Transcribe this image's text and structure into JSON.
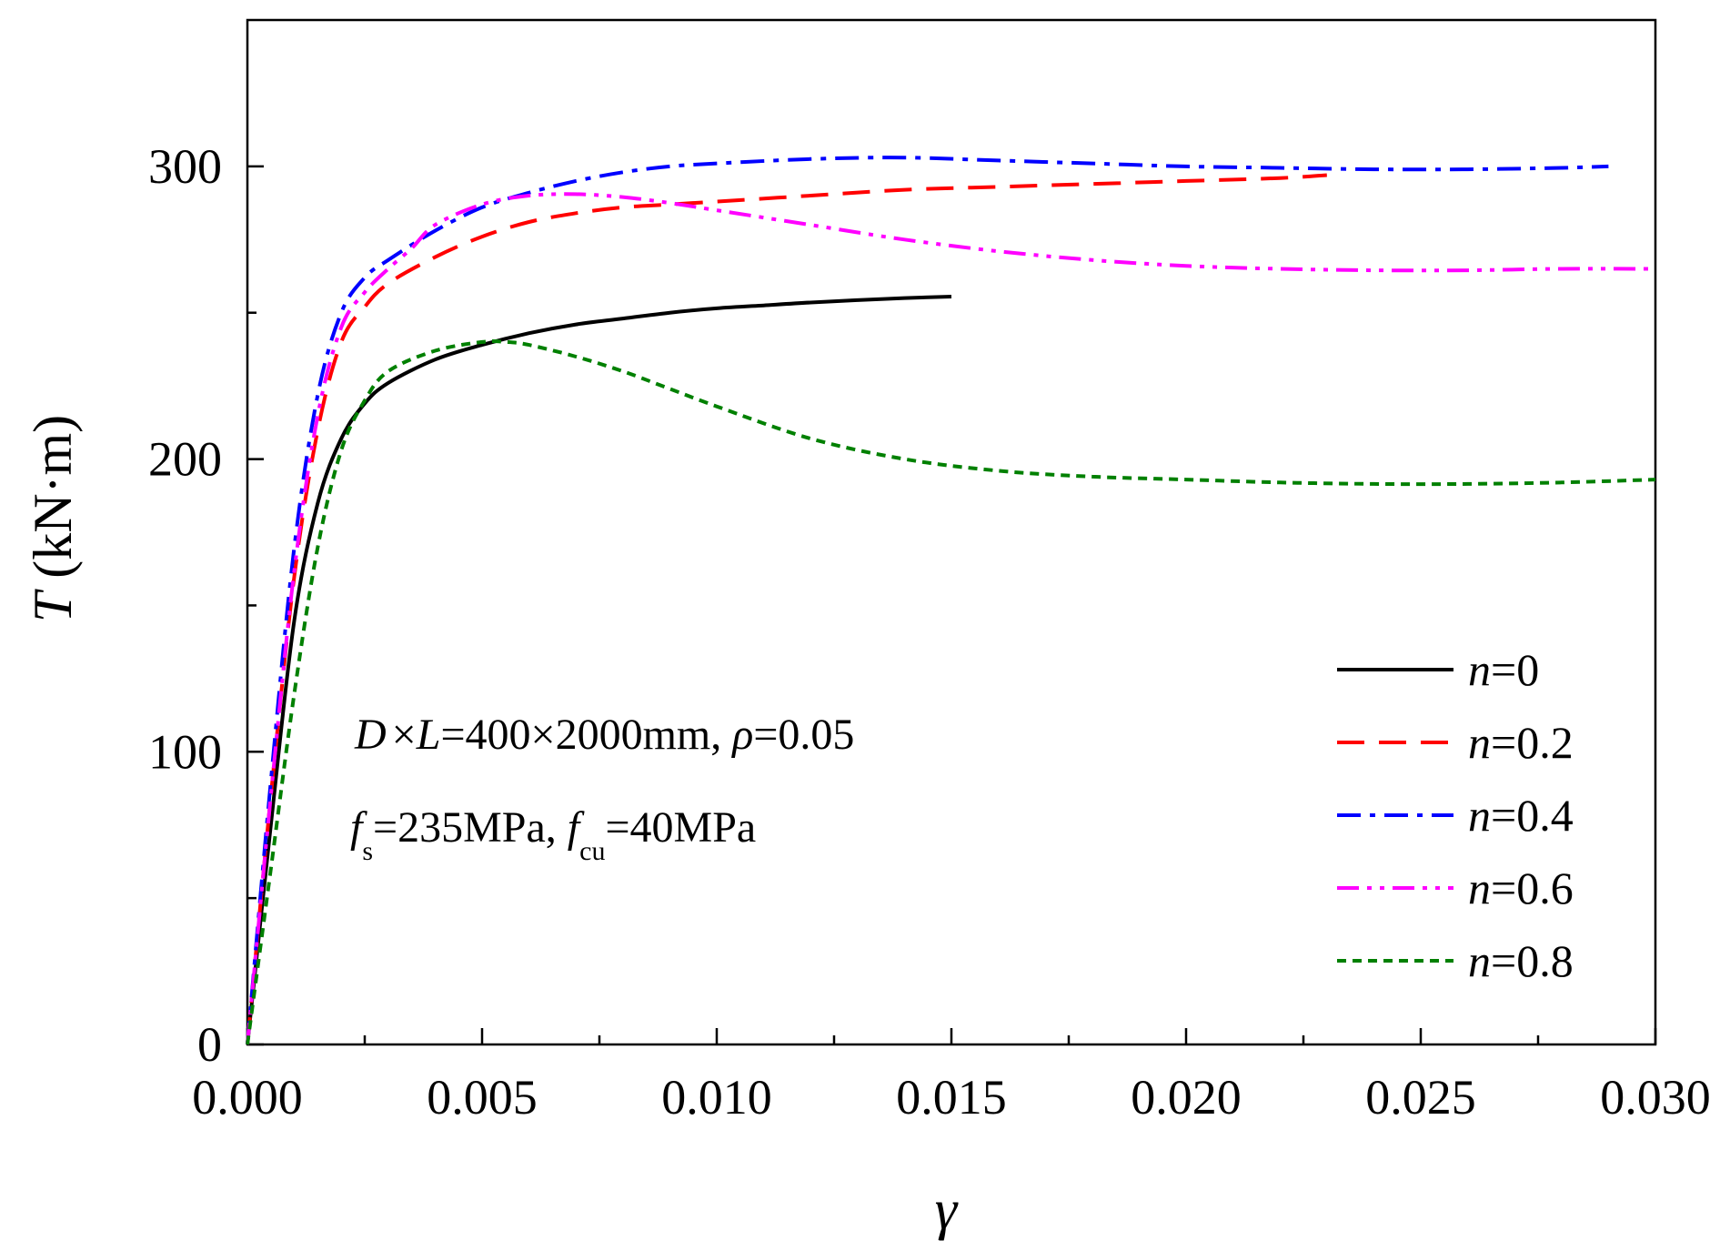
{
  "chart_data": {
    "type": "line",
    "xlabel": "γ",
    "ylabel_italic": "T",
    "ylabel_rest": " (kN·m)",
    "xlim": [
      0,
      0.03
    ],
    "ylim": [
      0,
      350
    ],
    "x_ticks": [
      0.0,
      0.005,
      0.01,
      0.015,
      0.02,
      0.025,
      0.03
    ],
    "x_tick_labels": [
      "0.000",
      "0.005",
      "0.010",
      "0.015",
      "0.020",
      "0.025",
      "0.030"
    ],
    "y_ticks": [
      0,
      100,
      200,
      300
    ],
    "y_tick_labels": [
      "0",
      "100",
      "200",
      "300"
    ],
    "legend_position": "bottom-right",
    "annotation": {
      "line1": {
        "d": "D",
        "x1": "×",
        "l": "L",
        "eq": "=400×2000mm, ",
        "rho": "ρ",
        "rho_val": "=0.05"
      },
      "line2": {
        "f1": "f",
        "s": "s",
        "fs_val": "=235MPa, ",
        "f2": "f",
        "cu": "cu",
        "fcu_val": "=40MPa"
      }
    },
    "series": [
      {
        "name": "n=0",
        "n_label": "n",
        "value_label": "=0",
        "color": "#000000",
        "dash": "solid",
        "x": [
          0,
          0.0005,
          0.001,
          0.0015,
          0.002,
          0.0025,
          0.003,
          0.004,
          0.005,
          0.006,
          0.007,
          0.008,
          0.009,
          0.01,
          0.011,
          0.012,
          0.013,
          0.014,
          0.015
        ],
        "y": [
          0,
          75,
          145,
          185,
          207,
          219,
          226,
          234,
          239,
          243,
          246,
          248,
          250,
          251.5,
          252.5,
          253.5,
          254.3,
          255,
          255.5
        ]
      },
      {
        "name": "n=0.2",
        "n_label": "n",
        "value_label": "=0.2",
        "color": "#ff0000",
        "dash": "long-dash",
        "x": [
          0,
          0.0005,
          0.001,
          0.0015,
          0.002,
          0.0025,
          0.003,
          0.004,
          0.005,
          0.006,
          0.007,
          0.008,
          0.009,
          0.01,
          0.012,
          0.014,
          0.016,
          0.018,
          0.02,
          0.022,
          0.023
        ],
        "y": [
          0,
          85,
          160,
          210,
          240,
          252,
          260,
          269,
          276,
          281,
          284,
          286,
          287,
          288,
          290,
          292,
          293,
          294,
          295,
          296,
          297
        ]
      },
      {
        "name": "n=0.4",
        "n_label": "n",
        "value_label": "=0.4",
        "color": "#0000ff",
        "dash": "dash-dot",
        "x": [
          0,
          0.0005,
          0.001,
          0.0015,
          0.002,
          0.0025,
          0.003,
          0.004,
          0.005,
          0.006,
          0.007,
          0.008,
          0.009,
          0.01,
          0.012,
          0.014,
          0.016,
          0.018,
          0.02,
          0.022,
          0.024,
          0.026,
          0.028,
          0.029
        ],
        "y": [
          0,
          90,
          170,
          222,
          250,
          262,
          268,
          278,
          286,
          291,
          295,
          298,
          300,
          301,
          302.5,
          303,
          302,
          301,
          300,
          299.5,
          299,
          299,
          299.5,
          300
        ]
      },
      {
        "name": "n=0.6",
        "n_label": "n",
        "value_label": "=0.6",
        "color": "#ff00ff",
        "dash": "dash-dot-dot",
        "x": [
          0,
          0.0005,
          0.001,
          0.0015,
          0.002,
          0.0025,
          0.003,
          0.0035,
          0.004,
          0.005,
          0.006,
          0.007,
          0.008,
          0.009,
          0.01,
          0.012,
          0.014,
          0.016,
          0.018,
          0.02,
          0.022,
          0.024,
          0.026,
          0.028,
          0.03
        ],
        "y": [
          0,
          85,
          162,
          215,
          245,
          257,
          265,
          272,
          280,
          287,
          290,
          290.5,
          289.5,
          287.5,
          285,
          280,
          275,
          271,
          268,
          266,
          265,
          264.5,
          264.5,
          265,
          265
        ]
      },
      {
        "name": "n=0.8",
        "n_label": "n",
        "value_label": "=0.8",
        "color": "#008000",
        "dash": "short-dash",
        "x": [
          0,
          0.0005,
          0.001,
          0.0015,
          0.002,
          0.0025,
          0.003,
          0.004,
          0.005,
          0.0055,
          0.006,
          0.007,
          0.008,
          0.009,
          0.01,
          0.012,
          0.014,
          0.016,
          0.018,
          0.02,
          0.022,
          0.024,
          0.026,
          0.028,
          0.03
        ],
        "y": [
          0,
          60,
          120,
          170,
          203,
          220,
          230,
          237,
          240,
          240,
          239,
          235,
          230,
          224,
          218,
          207,
          200,
          196,
          194,
          193,
          192,
          191.5,
          191.5,
          192,
          193
        ]
      }
    ]
  }
}
